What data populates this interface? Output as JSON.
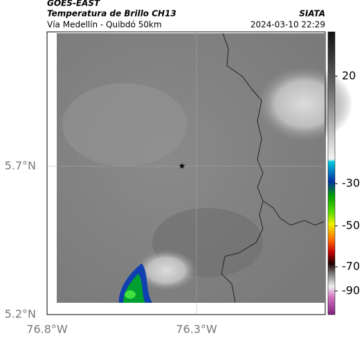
{
  "header": {
    "satellite": "GOES-EAST",
    "product": "Temperatura de Brillo CH13",
    "region": "Vía Medellín - Quibdó 50km",
    "source": "SIATA",
    "datetime": "2024-03-10 22:29"
  },
  "axes": {
    "lat_labels": [
      "5.7°N",
      "5.2°N"
    ],
    "lon_labels": [
      "76.8°W",
      "76.3°W"
    ]
  },
  "colorbar": {
    "labels": [
      "20",
      "-30",
      "-50",
      "-70",
      "-90"
    ]
  }
}
